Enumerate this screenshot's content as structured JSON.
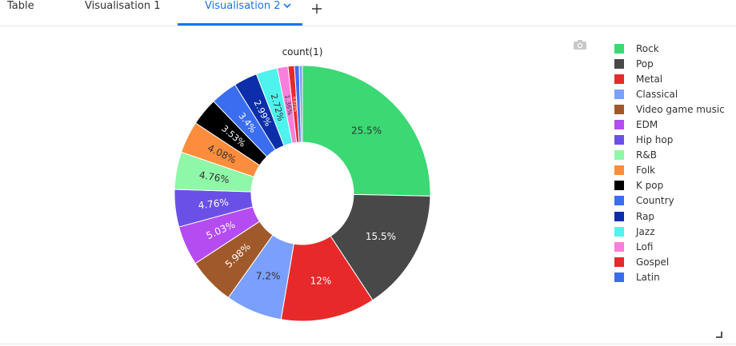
{
  "tabs": [
    {
      "label": "Table"
    },
    {
      "label": "Visualisation 1"
    },
    {
      "label": "Visualisation 2"
    }
  ],
  "active_tab": "Visualisation 2",
  "icons": {
    "dropdown": "chevron-down-icon",
    "add": "plus-icon",
    "camera": "camera-icon",
    "resize": "resize-handle-icon"
  },
  "chart_data": {
    "type": "pie",
    "hole": 0.4,
    "title": "count(1)",
    "legend_position": "right",
    "slices": [
      {
        "label": "Rock",
        "value": 25.5,
        "text": "25.5%",
        "color": "#3cd873",
        "text_color": "#333333"
      },
      {
        "label": "Pop",
        "value": 15.5,
        "text": "15.5%",
        "color": "#484848",
        "text_color": "#ffffff"
      },
      {
        "label": "Metal",
        "value": 12,
        "text": "12%",
        "color": "#e8292a",
        "text_color": "#ffffff"
      },
      {
        "label": "Classical",
        "value": 7.2,
        "text": "7.2%",
        "color": "#7b9ffc",
        "text_color": "#333333"
      },
      {
        "label": "Video game music",
        "value": 5.98,
        "text": "5.98%",
        "color": "#a0592a",
        "text_color": "#ffffff"
      },
      {
        "label": "EDM",
        "value": 5.03,
        "text": "5.03%",
        "color": "#b44cf2",
        "text_color": "#ffffff"
      },
      {
        "label": "Hip hop",
        "value": 4.76,
        "text": "4.76%",
        "color": "#6b50e8",
        "text_color": "#ffffff"
      },
      {
        "label": "R&B",
        "value": 4.76,
        "text": "4.76%",
        "color": "#8ff7a8",
        "text_color": "#333333"
      },
      {
        "label": "Folk",
        "value": 4.08,
        "text": "4.08%",
        "color": "#fd8d3c",
        "text_color": "#333333"
      },
      {
        "label": "K pop",
        "value": 3.53,
        "text": "3.53%",
        "color": "#000000",
        "text_color": "#ffffff"
      },
      {
        "label": "Country",
        "value": 3.4,
        "text": "3.4%",
        "color": "#3a6df0",
        "text_color": "#ffffff"
      },
      {
        "label": "Rap",
        "value": 2.99,
        "text": "2.99%",
        "color": "#0c2ea8",
        "text_color": "#ffffff"
      },
      {
        "label": "Jazz",
        "value": 2.72,
        "text": "2.72%",
        "color": "#4ef3ee",
        "text_color": "#333333"
      },
      {
        "label": "Lofi",
        "value": 1.36,
        "text": "1.36%",
        "color": "#fa7edb",
        "text_color": "#333333"
      },
      {
        "label": "Gospel",
        "value": 0.815,
        "text": "0.815%",
        "color": "#e8292a",
        "text_color": "#ffffff"
      },
      {
        "label": "Latin",
        "value": 0.6,
        "text": "",
        "color": "#3a6df0",
        "text_color": "#ffffff"
      },
      {
        "label": "",
        "value": 0.4,
        "text": "",
        "color": "#7b9ffc",
        "text_color": "#333333"
      }
    ]
  }
}
